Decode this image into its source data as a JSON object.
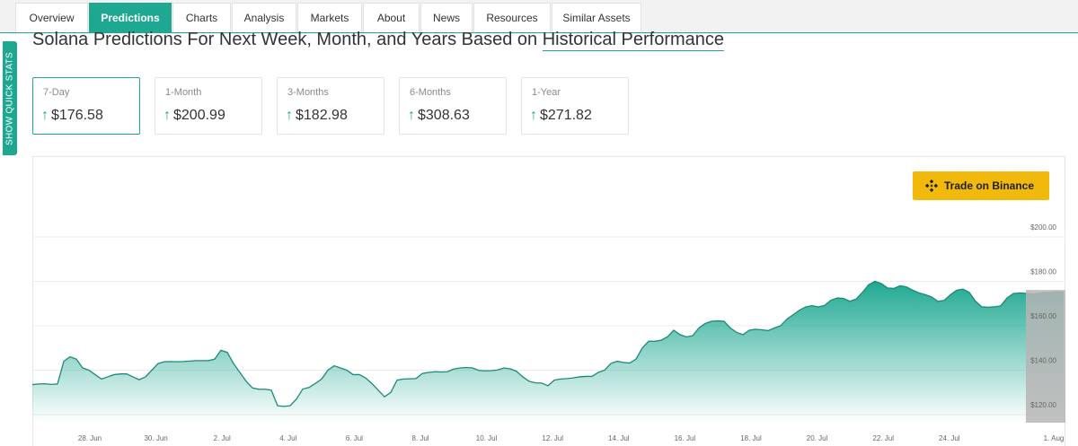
{
  "tabs": [
    {
      "label": "Overview",
      "active": false
    },
    {
      "label": "Predictions",
      "active": true
    },
    {
      "label": "Charts",
      "active": false
    },
    {
      "label": "Analysis",
      "active": false
    },
    {
      "label": "Markets",
      "active": false
    },
    {
      "label": "About",
      "active": false
    },
    {
      "label": "News",
      "active": false
    },
    {
      "label": "Resources",
      "active": false
    },
    {
      "label": "Similar Assets",
      "active": false
    }
  ],
  "side_button": {
    "label": "SHOW QUICK STATS"
  },
  "heading": {
    "text": "Solana Predictions For Next Week, Month, and Years Based on ",
    "highlight": "Historical Performance"
  },
  "predictions": [
    {
      "label": "7-Day",
      "value": "$176.58",
      "active": true
    },
    {
      "label": "1-Month",
      "value": "$200.99",
      "active": false
    },
    {
      "label": "3-Months",
      "value": "$182.98",
      "active": false
    },
    {
      "label": "6-Months",
      "value": "$308.63",
      "active": false
    },
    {
      "label": "1-Year",
      "value": "$271.82",
      "active": false
    }
  ],
  "trade_button": {
    "label": "Trade on Binance",
    "icon": "binance-logo-icon"
  },
  "colors": {
    "accent": "#1fa891",
    "arrow_up": "#22a96b",
    "binance": "#f0b90b",
    "forecast_band": "#b5b5b5"
  },
  "chart_data": {
    "type": "area",
    "title": "",
    "xlabel": "",
    "ylabel": "",
    "x_ticks": [
      "28. Jun",
      "30. Jun",
      "2. Jul",
      "4. Jul",
      "6. Jul",
      "8. Jul",
      "10. Jul",
      "12. Jul",
      "14. Jul",
      "16. Jul",
      "18. Jul",
      "20. Jul",
      "22. Jul",
      "24. Jul",
      "1. Aug"
    ],
    "y_ticks": [
      "$120.00",
      "$140.00",
      "$160.00",
      "$180.00",
      "$200.00"
    ],
    "ylim": [
      120,
      200
    ],
    "grid": true,
    "series": [
      {
        "values": [
          133.5,
          133.8,
          133.9,
          133.6,
          133.8,
          144,
          146,
          145,
          141,
          140,
          138,
          136,
          137,
          138,
          138.3,
          138.3,
          137,
          135.7,
          137,
          140,
          143,
          143.8,
          143.9,
          143.8,
          143.9,
          144.1,
          144.3,
          144.3,
          144.3,
          145,
          149,
          148,
          143,
          139,
          135,
          132,
          131.4,
          131.4,
          131,
          124,
          123.7,
          124,
          127,
          131.5,
          132.2,
          134,
          136,
          140,
          142,
          141,
          140,
          138,
          138,
          136.5,
          134,
          131,
          128,
          130,
          135.5,
          136,
          136.1,
          136.2,
          138.5,
          139,
          139.3,
          139.2,
          139.3,
          140.5,
          141,
          141.2,
          141,
          139.9,
          139.7,
          139.8,
          140.1,
          141,
          140.6,
          139.5,
          137,
          135,
          134.3,
          134.2,
          133,
          135.5,
          136,
          136.2,
          136.5,
          137,
          137.2,
          137.2,
          139,
          140,
          143,
          144,
          143.5,
          143.2,
          145,
          150,
          153,
          153,
          153.5,
          155,
          158,
          156,
          155,
          155.5,
          159,
          161,
          162,
          162.2,
          162,
          159,
          157,
          156,
          158,
          158.4,
          158.2,
          157.8,
          159,
          160,
          163,
          165,
          167,
          168.5,
          169,
          168.5,
          169.2,
          171.5,
          172.5,
          172.3,
          171,
          172,
          175,
          178.5,
          180,
          179,
          177,
          176.8,
          178,
          177.5,
          176,
          174.8,
          174,
          173,
          171,
          171.4,
          174,
          176,
          176.5,
          175,
          171,
          168.5,
          168.3,
          168.5,
          169,
          172.5,
          174.5,
          174.8,
          174.6,
          174.2,
          174.5,
          174.9,
          175,
          175.3,
          175
        ]
      }
    ],
    "forecast_region": {
      "from": "31. Jul",
      "to": "1. Aug"
    }
  }
}
